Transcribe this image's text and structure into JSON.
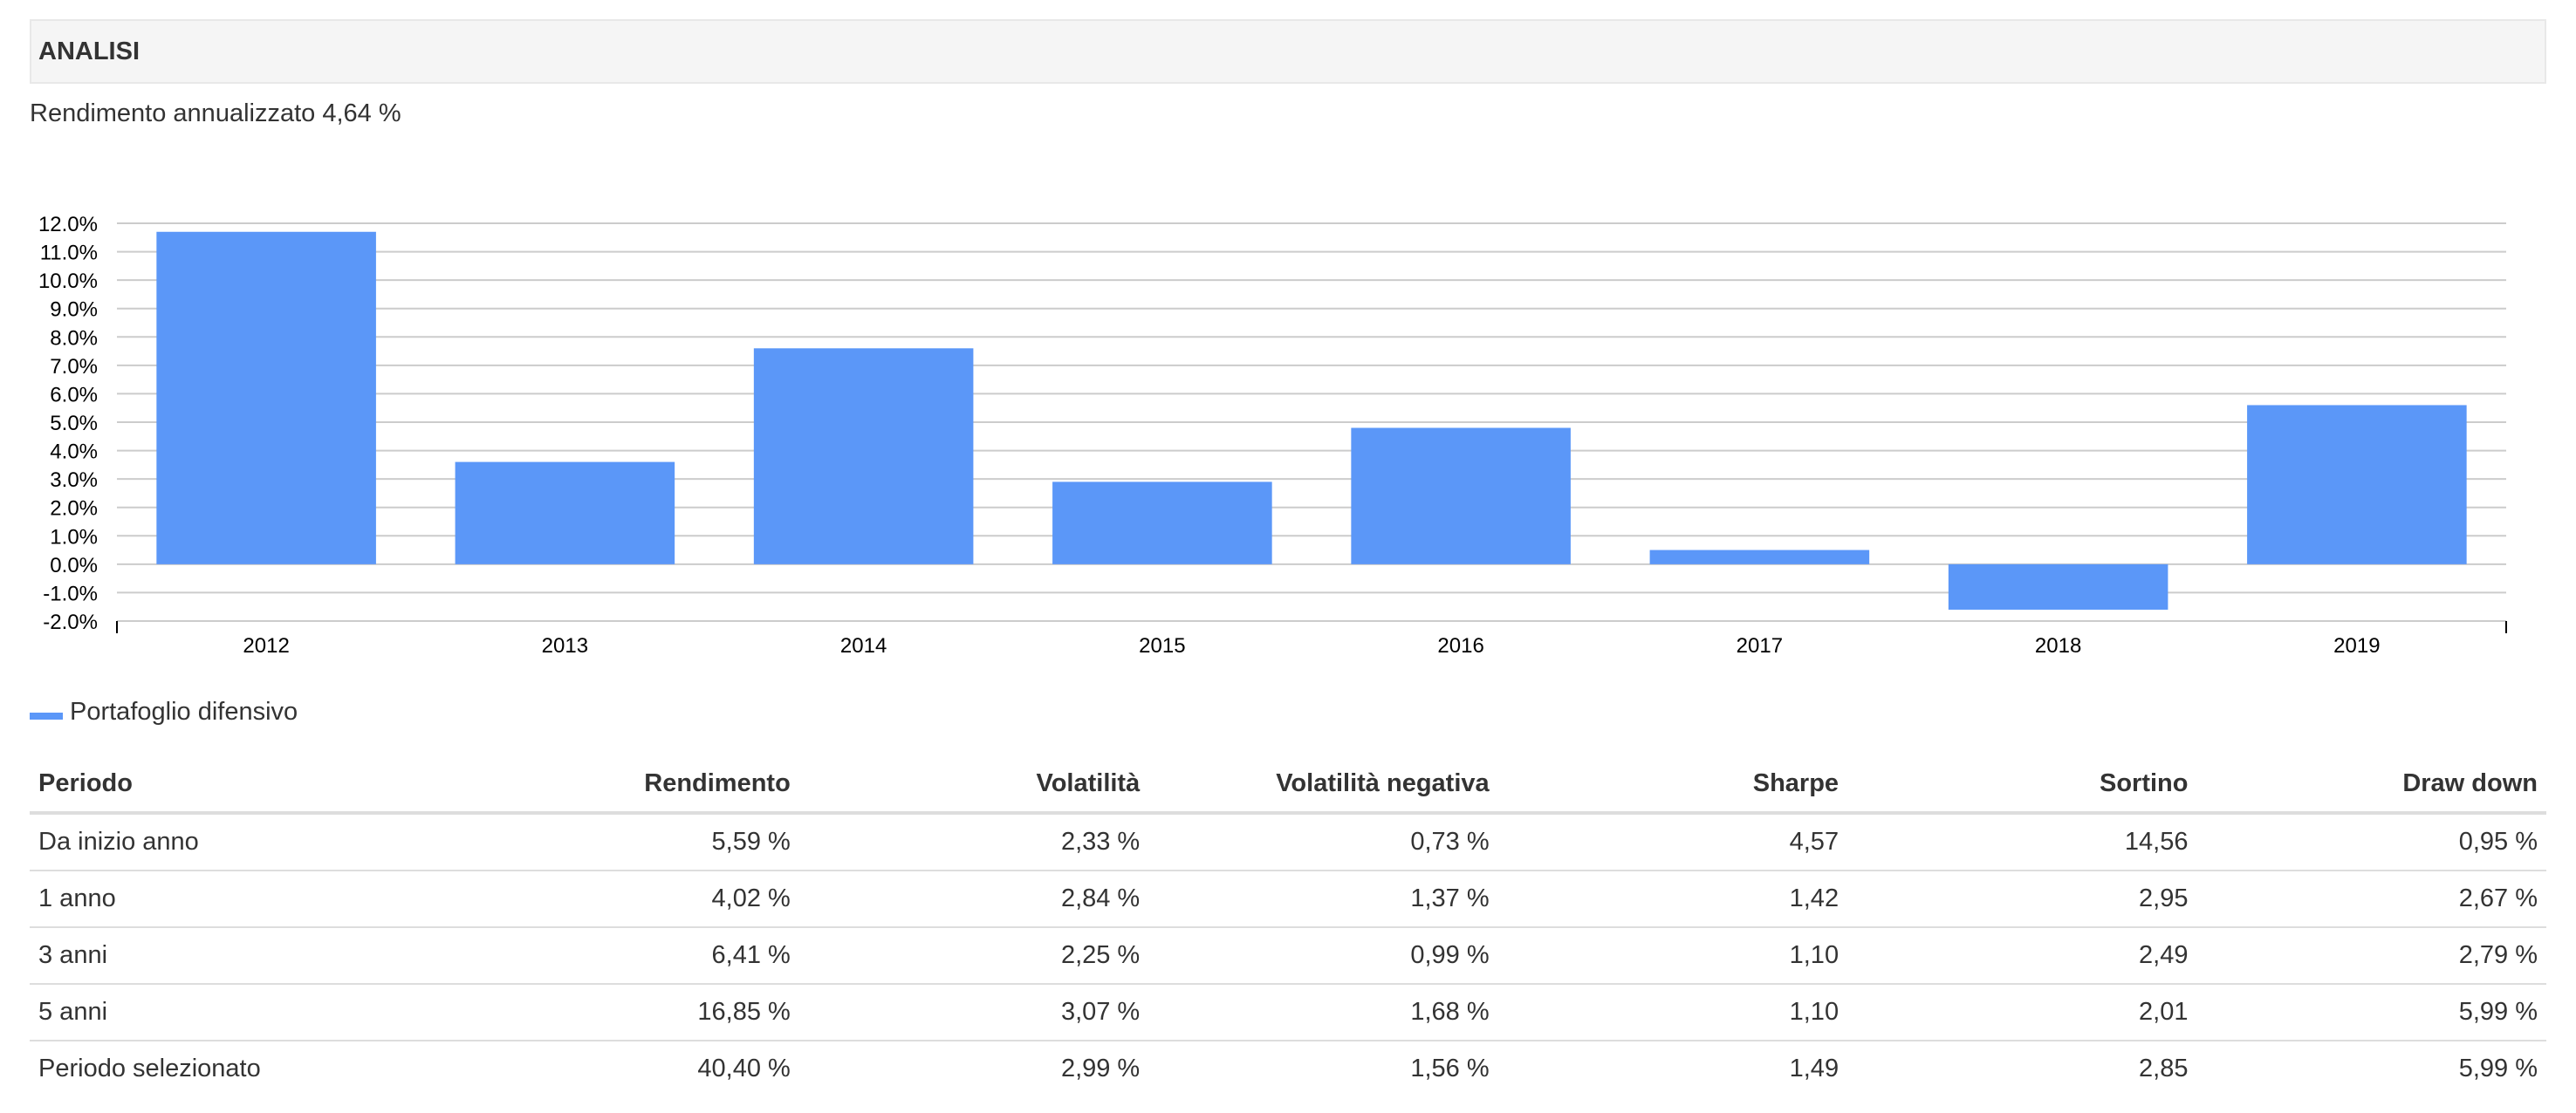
{
  "panel": {
    "title": "ANALISI"
  },
  "summary": "Rendimento annualizzato 4,64 %",
  "colors": {
    "bar": "#5b97f8",
    "grid": "#cccccc",
    "axis": "#000000"
  },
  "chart_data": {
    "type": "bar",
    "categories": [
      "2012",
      "2013",
      "2014",
      "2015",
      "2016",
      "2017",
      "2018",
      "2019"
    ],
    "series": [
      {
        "name": "Portafoglio difensivo",
        "values": [
          11.7,
          3.6,
          7.6,
          2.9,
          4.8,
          0.5,
          -1.6,
          5.6
        ]
      }
    ],
    "ylim": [
      -2.0,
      12.0
    ],
    "yticks": [
      "12.0%",
      "11.0%",
      "10.0%",
      "9.0%",
      "8.0%",
      "7.0%",
      "6.0%",
      "5.0%",
      "4.0%",
      "3.0%",
      "2.0%",
      "1.0%",
      "0.0%",
      "-1.0%",
      "-2.0%"
    ],
    "grid": true,
    "legend": "bottom-left"
  },
  "legend": {
    "label": "Portafoglio difensivo"
  },
  "table": {
    "headers": [
      "Periodo",
      "Rendimento",
      "Volatilità",
      "Volatilità negativa",
      "Sharpe",
      "Sortino",
      "Draw down"
    ],
    "rows": [
      [
        "Da inizio anno",
        "5,59 %",
        "2,33 %",
        "0,73 %",
        "4,57",
        "14,56",
        "0,95 %"
      ],
      [
        "1 anno",
        "4,02 %",
        "2,84 %",
        "1,37 %",
        "1,42",
        "2,95",
        "2,67 %"
      ],
      [
        "3 anni",
        "6,41 %",
        "2,25 %",
        "0,99 %",
        "1,10",
        "2,49",
        "2,79 %"
      ],
      [
        "5 anni",
        "16,85 %",
        "3,07 %",
        "1,68 %",
        "1,10",
        "2,01",
        "5,99 %"
      ],
      [
        "Periodo selezionato",
        "40,40 %",
        "2,99 %",
        "1,56 %",
        "1,49",
        "2,85",
        "5,99 %"
      ]
    ]
  }
}
